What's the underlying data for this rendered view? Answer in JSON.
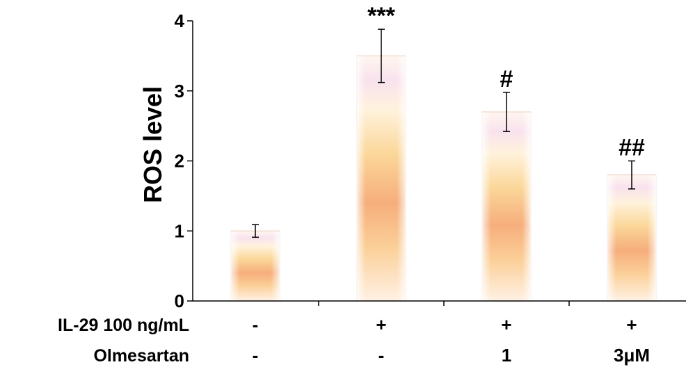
{
  "chart_data": {
    "type": "bar",
    "title": "",
    "xlabel": "",
    "ylabel": "ROS level",
    "ylim": [
      0,
      4
    ],
    "yticks": [
      "0",
      "1",
      "2",
      "3",
      "4"
    ],
    "grid": false,
    "legend": "none",
    "bars": [
      {
        "value": 1.0,
        "error": 0.09,
        "significance": ""
      },
      {
        "value": 3.5,
        "error": 0.38,
        "significance": "***"
      },
      {
        "value": 2.7,
        "error": 0.28,
        "significance": "#"
      },
      {
        "value": 1.8,
        "error": 0.2,
        "significance": "##"
      }
    ],
    "condition_rows": [
      {
        "label": "IL-29 100 ng/mL",
        "values": [
          "-",
          "+",
          "+",
          "+"
        ]
      },
      {
        "label": "Olmesartan",
        "values": [
          "-",
          "-",
          "1",
          "3μM"
        ]
      }
    ],
    "colors": {
      "bar_light": "#fdf3ee",
      "bar_mid": "#f9d7a0",
      "bar_deep": "#f2a074",
      "axis": "#000000"
    }
  }
}
